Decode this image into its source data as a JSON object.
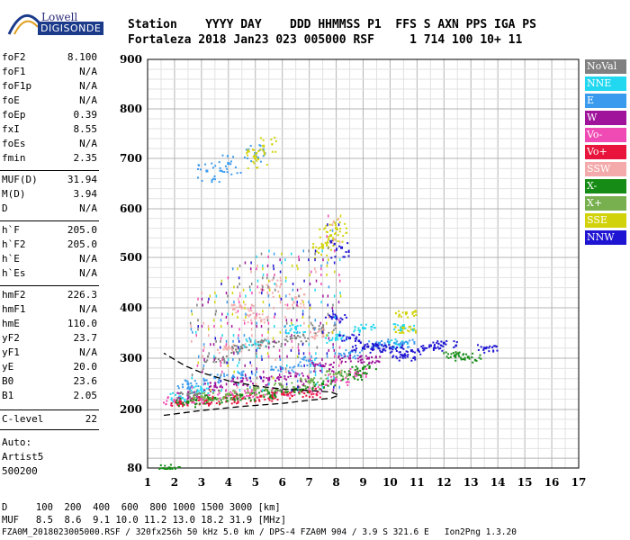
{
  "logo": {
    "top": "Lowell",
    "main": "DIGISONDE"
  },
  "header": {
    "row1": "Station    YYYY DAY    DDD HHMMSS P1  FFS S AXN PPS IGA PS",
    "row2": "Fortaleza 2018 Jan23 023 005000 RSF     1 714 100 10+ 11"
  },
  "params": [
    {
      "key": "foF2",
      "value": "8.100"
    },
    {
      "key": "foF1",
      "value": "N/A"
    },
    {
      "key": "foF1p",
      "value": "N/A"
    },
    {
      "key": "foE",
      "value": "N/A"
    },
    {
      "key": "foEp",
      "value": "0.39"
    },
    {
      "key": "fxI",
      "value": "8.55"
    },
    {
      "key": "foEs",
      "value": "N/A"
    },
    {
      "key": "fmin",
      "value": "2.35"
    },
    {
      "key": "MUF(D)",
      "value": "31.94"
    },
    {
      "key": "M(D)",
      "value": "3.94"
    },
    {
      "key": "D",
      "value": "N/A"
    },
    {
      "key": "h`F",
      "value": "205.0"
    },
    {
      "key": "h`F2",
      "value": "205.0"
    },
    {
      "key": "h`E",
      "value": "N/A"
    },
    {
      "key": "h`Es",
      "value": "N/A"
    },
    {
      "key": "hmF2",
      "value": "226.3"
    },
    {
      "key": "hmF1",
      "value": "N/A"
    },
    {
      "key": "hmE",
      "value": "110.0"
    },
    {
      "key": "yF2",
      "value": "23.7"
    },
    {
      "key": "yF1",
      "value": "N/A"
    },
    {
      "key": "yE",
      "value": "20.0"
    },
    {
      "key": "B0",
      "value": "23.6"
    },
    {
      "key": "B1",
      "value": "2.05"
    },
    {
      "key": "C-level",
      "value": "22"
    }
  ],
  "notes": {
    "auto": "Auto:",
    "artist": "Artist5",
    "version": "500200"
  },
  "legend": [
    {
      "label": "NoVal",
      "color": "#808080"
    },
    {
      "label": "NNE",
      "color": "#22d8f0"
    },
    {
      "label": "E",
      "color": "#3a9aee"
    },
    {
      "label": "W",
      "color": "#a0149c"
    },
    {
      "label": "Vo-",
      "color": "#f04ab4"
    },
    {
      "label": "Vo+",
      "color": "#e8143c"
    },
    {
      "label": "SSW",
      "color": "#f4aaaa"
    },
    {
      "label": "X-",
      "color": "#168c16"
    },
    {
      "label": "X+",
      "color": "#78b050"
    },
    {
      "label": "SSE",
      "color": "#d2d20a"
    },
    {
      "label": "NNW",
      "color": "#1e14d2"
    }
  ],
  "footer": {
    "line1": "D     100  200  400  600  800 1000 1500 3000 [km]",
    "line2": "MUF   8.5  8.6  9.1 10.0 11.2 13.0 18.2 31.9 [MHz]",
    "line3": "FZA0M_2018023005000.RSF / 320fx256h 50 kHz 5.0 km / DPS-4 FZA0M 904 / 3.9 S 321.6 E   Ion2Png 1.3.20"
  },
  "chart_data": {
    "type": "scatter",
    "xlim": [
      1,
      17
    ],
    "ylim": [
      80,
      900
    ],
    "x_ticks": [
      1,
      2,
      3,
      4,
      5,
      6,
      7,
      8,
      9,
      10,
      11,
      12,
      13,
      14,
      15,
      16,
      17
    ],
    "y_ticks": [
      80,
      200,
      300,
      400,
      500,
      600,
      700,
      800,
      900
    ],
    "grid": true,
    "legend_placement": "right",
    "series": [
      {
        "name": "NNE",
        "points": [
          [
            2.2,
            225
          ],
          [
            3.0,
            240
          ],
          [
            5.0,
            330
          ],
          [
            6.5,
            360
          ],
          [
            8.0,
            340
          ],
          [
            10.2,
            330
          ],
          [
            10.5,
            365
          ],
          [
            9.0,
            360
          ]
        ]
      },
      {
        "name": "E",
        "points": [
          [
            2.5,
            250
          ],
          [
            3.5,
            262
          ],
          [
            4.5,
            268
          ],
          [
            6.0,
            280
          ],
          [
            7.0,
            295
          ],
          [
            8.5,
            310
          ],
          [
            9.6,
            330
          ],
          [
            10.5,
            330
          ],
          [
            3.2,
            675
          ],
          [
            4.0,
            690
          ],
          [
            5.0,
            710
          ]
        ]
      },
      {
        "name": "W",
        "points": [
          [
            2.5,
            228
          ],
          [
            3.5,
            245
          ],
          [
            4.5,
            255
          ],
          [
            5.5,
            258
          ],
          [
            6.5,
            265
          ],
          [
            7.5,
            285
          ],
          [
            8.5,
            300
          ],
          [
            9.2,
            300
          ]
        ]
      },
      {
        "name": "Vo-",
        "points": [
          [
            2.0,
            218
          ],
          [
            3.0,
            222
          ],
          [
            4.0,
            228
          ],
          [
            5.0,
            232
          ],
          [
            6.0,
            236
          ],
          [
            7.0,
            242
          ],
          [
            8.0,
            258
          ],
          [
            8.8,
            272
          ]
        ]
      },
      {
        "name": "Vo+",
        "points": [
          [
            2.2,
            215
          ],
          [
            3.2,
            218
          ],
          [
            4.2,
            222
          ],
          [
            5.2,
            226
          ],
          [
            6.0,
            230
          ],
          [
            7.0,
            234
          ]
        ]
      },
      {
        "name": "SSW",
        "points": [
          [
            4.0,
            320
          ],
          [
            4.5,
            400
          ],
          [
            5.0,
            380
          ],
          [
            5.5,
            440
          ],
          [
            6.5,
            420
          ],
          [
            7.5,
            350
          ]
        ]
      },
      {
        "name": "X-",
        "points": [
          [
            2.5,
            215
          ],
          [
            3.5,
            222
          ],
          [
            4.5,
            228
          ],
          [
            5.5,
            232
          ],
          [
            6.5,
            240
          ],
          [
            7.5,
            250
          ],
          [
            8.5,
            268
          ],
          [
            9.0,
            280
          ],
          [
            12.4,
            305
          ],
          [
            12.9,
            302
          ],
          [
            1.8,
            80
          ]
        ]
      },
      {
        "name": "X+",
        "points": [
          [
            3.0,
            225
          ],
          [
            4.0,
            230
          ],
          [
            5.0,
            238
          ],
          [
            6.0,
            245
          ],
          [
            7.0,
            255
          ],
          [
            8.0,
            270
          ]
        ]
      },
      {
        "name": "SSE",
        "points": [
          [
            5.0,
            700
          ],
          [
            5.3,
            725
          ],
          [
            7.5,
            520
          ],
          [
            7.8,
            545
          ],
          [
            8.0,
            560
          ],
          [
            10.5,
            360
          ],
          [
            10.6,
            390
          ]
        ]
      },
      {
        "name": "NNW",
        "points": [
          [
            8.0,
            380
          ],
          [
            8.5,
            340
          ],
          [
            9.0,
            320
          ],
          [
            9.5,
            325
          ],
          [
            10.0,
            320
          ],
          [
            10.5,
            305
          ],
          [
            10.8,
            315
          ],
          [
            11.5,
            325
          ],
          [
            12.0,
            330
          ],
          [
            13.5,
            320
          ],
          [
            8.2,
            520
          ]
        ]
      },
      {
        "name": "NoVal",
        "points": [
          [
            2.5,
            230
          ],
          [
            3.5,
            300
          ],
          [
            4.5,
            320
          ],
          [
            5.5,
            330
          ],
          [
            6.5,
            340
          ],
          [
            7.5,
            360
          ]
        ]
      }
    ],
    "profile_curve": [
      [
        1.6,
        188
      ],
      [
        3.0,
        198
      ],
      [
        4.5,
        206
      ],
      [
        6.0,
        212
      ],
      [
        7.0,
        218
      ],
      [
        7.8,
        222
      ],
      [
        8.1,
        228
      ],
      [
        7.8,
        234
      ],
      [
        7.0,
        237
      ],
      [
        6.0,
        240
      ],
      [
        5.0,
        246
      ],
      [
        4.0,
        256
      ],
      [
        3.0,
        272
      ],
      [
        2.4,
        285
      ],
      [
        1.6,
        310
      ]
    ]
  }
}
